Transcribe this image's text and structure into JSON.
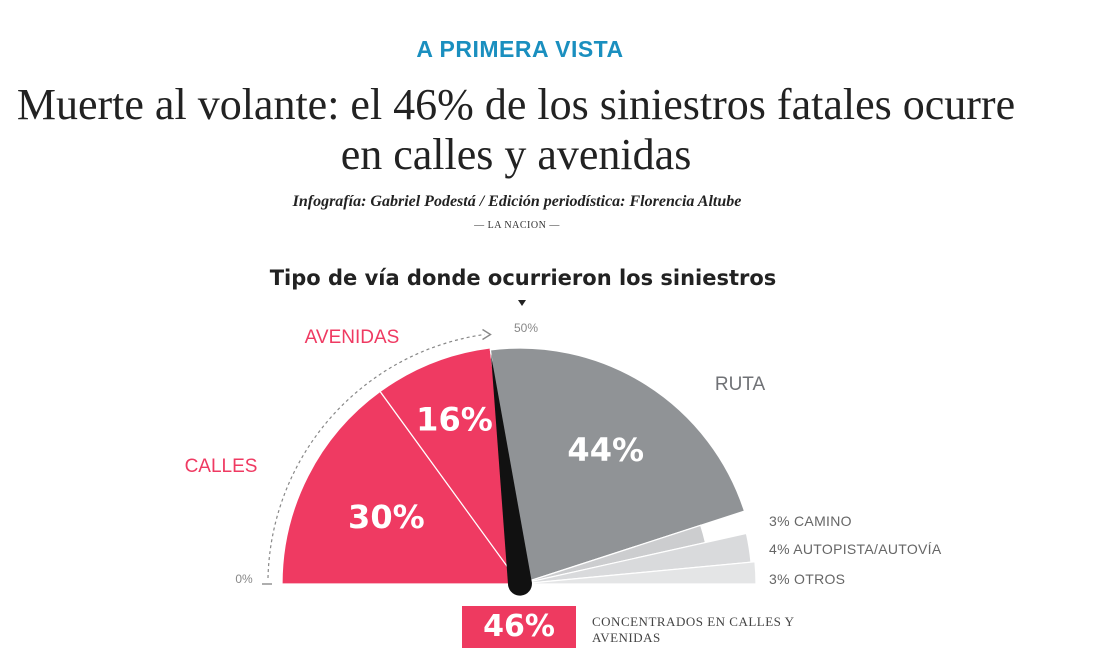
{
  "kicker": "A PRIMERA VISTA",
  "headline": "Muerte al volante: el 46% de los siniestros fatales ocurre en calles y avenidas",
  "credits": "Infografía: Gabriel Podestá / Edición periodística: Florencia Altube",
  "source": "— LA NACION —",
  "chart_data": {
    "type": "pie",
    "title": "Tipo de vía donde ocurrieron los siniestros",
    "layout": "half-pie",
    "scale_labels": {
      "start": "0%",
      "mid": "50%"
    },
    "slices": [
      {
        "name": "CALLES",
        "value": 30,
        "label": "30%",
        "color": "#ef3a62",
        "label_color": "#ef3a62"
      },
      {
        "name": "AVENIDAS",
        "value": 16,
        "label": "16%",
        "color": "#ef3a62",
        "label_color": "#ef3a62"
      },
      {
        "name": "RUTA",
        "value": 44,
        "label": "44%",
        "color": "#909396",
        "label_color": "#707276"
      },
      {
        "name": "",
        "value": 3,
        "label": "3% CAMINO",
        "color": "#cccdcf",
        "label_color": "#666"
      },
      {
        "name": "",
        "value": 4,
        "label": "4% AUTOPISTA/AUTOVÍA",
        "color": "#d9dadc",
        "label_color": "#666"
      },
      {
        "name": "",
        "value": 3,
        "label": "3% OTROS",
        "color": "#e4e5e6",
        "label_color": "#666"
      }
    ],
    "pointer_value": 46,
    "total_value": "46%",
    "total_note": "CONCENTRADOS EN CALLES Y AVENIDAS"
  }
}
